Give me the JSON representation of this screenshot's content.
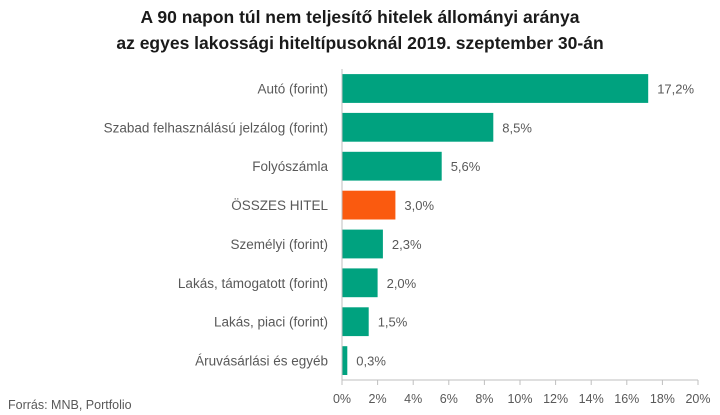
{
  "chart_data": {
    "type": "bar",
    "orientation": "horizontal",
    "title_lines": [
      "A 90 napon túl nem teljesítő hitelek állományi aránya",
      "az egyes lakossági hiteltípusoknál 2019. szeptember 30-án"
    ],
    "categories": [
      "Autó (forint)",
      "Szabad felhasználású jelzálog (forint)",
      "Folyószámla",
      "ÖSSZES HITEL",
      "Személyi (forint)",
      "Lakás, támogatott (forint)",
      "Lakás, piaci (forint)",
      "Áruvásárlási és egyéb"
    ],
    "values": [
      17.2,
      8.5,
      5.6,
      3.0,
      2.3,
      2.0,
      1.5,
      0.3
    ],
    "value_labels": [
      "17,2%",
      "8,5%",
      "5,6%",
      "3,0%",
      "2,3%",
      "2,0%",
      "1,5%",
      "0,3%"
    ],
    "highlight_index": 3,
    "xlim": [
      0,
      20
    ],
    "xticks": [
      0,
      2,
      4,
      6,
      8,
      10,
      12,
      14,
      16,
      18,
      20
    ],
    "xtick_labels": [
      "0%",
      "2%",
      "4%",
      "6%",
      "8%",
      "10%",
      "12%",
      "14%",
      "16%",
      "18%",
      "20%"
    ],
    "grid": false,
    "colors": {
      "bar": "#00a27f",
      "highlight": "#fa5a0f",
      "axis": "#bfbfbf",
      "text": "#595959"
    },
    "source": "Forrás: MNB, Portfolio"
  }
}
